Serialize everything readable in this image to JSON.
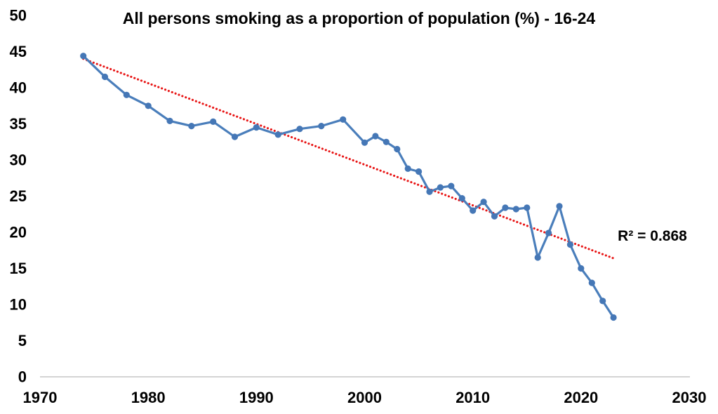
{
  "annotation": {
    "r_squared_label": "R² = 0.868"
  },
  "colors": {
    "series_line": "#4a7ebb",
    "marker_fill": "#4577b6",
    "trend_line": "#e81414",
    "axis_line": "#c6c6c6",
    "label_text": "#000000",
    "background": "#ffffff"
  },
  "chart_data": {
    "type": "line",
    "title": "All persons smoking as a proportion of population (%) - 16-24",
    "xlabel": "",
    "ylabel": "",
    "xlim": [
      1970,
      2030
    ],
    "ylim": [
      0,
      50
    ],
    "x_ticks": [
      "1970",
      "1980",
      "1990",
      "2000",
      "2010",
      "2020",
      "2030"
    ],
    "x_tick_years": [
      1970,
      1980,
      1990,
      2000,
      2010,
      2020,
      2030
    ],
    "y_ticks": [
      "0",
      "5",
      "10",
      "15",
      "20",
      "25",
      "30",
      "35",
      "40",
      "45",
      "50"
    ],
    "y_tick_values": [
      0,
      5,
      10,
      15,
      20,
      25,
      30,
      35,
      40,
      45,
      50
    ],
    "grid": false,
    "legend_position": "none",
    "series": [
      {
        "name": "All persons smoking 16-24",
        "points": [
          [
            1974,
            44.4
          ],
          [
            1976,
            41.5
          ],
          [
            1978,
            39.0
          ],
          [
            1980,
            37.5
          ],
          [
            1982,
            35.4
          ],
          [
            1984,
            34.7
          ],
          [
            1986,
            35.3
          ],
          [
            1988,
            33.2
          ],
          [
            1990,
            34.5
          ],
          [
            1992,
            33.5
          ],
          [
            1994,
            34.3
          ],
          [
            1996,
            34.7
          ],
          [
            1998,
            35.6
          ],
          [
            2000,
            32.4
          ],
          [
            2001,
            33.3
          ],
          [
            2002,
            32.5
          ],
          [
            2003,
            31.5
          ],
          [
            2004,
            28.8
          ],
          [
            2005,
            28.4
          ],
          [
            2006,
            25.6
          ],
          [
            2007,
            26.2
          ],
          [
            2008,
            26.4
          ],
          [
            2009,
            24.7
          ],
          [
            2010,
            23.0
          ],
          [
            2011,
            24.2
          ],
          [
            2012,
            22.2
          ],
          [
            2013,
            23.4
          ],
          [
            2014,
            23.2
          ],
          [
            2015,
            23.4
          ],
          [
            2016,
            16.5
          ],
          [
            2017,
            19.9
          ],
          [
            2018,
            23.6
          ],
          [
            2019,
            18.3
          ],
          [
            2020,
            15.0
          ],
          [
            2021,
            13.0
          ],
          [
            2022,
            10.5
          ],
          [
            2023,
            8.2
          ]
        ]
      }
    ],
    "trendline": {
      "type": "linear",
      "style": "dotted",
      "start_year": 1974,
      "start_value": 44.0,
      "end_year": 2023,
      "end_value": 16.4,
      "r_squared": 0.868
    }
  }
}
